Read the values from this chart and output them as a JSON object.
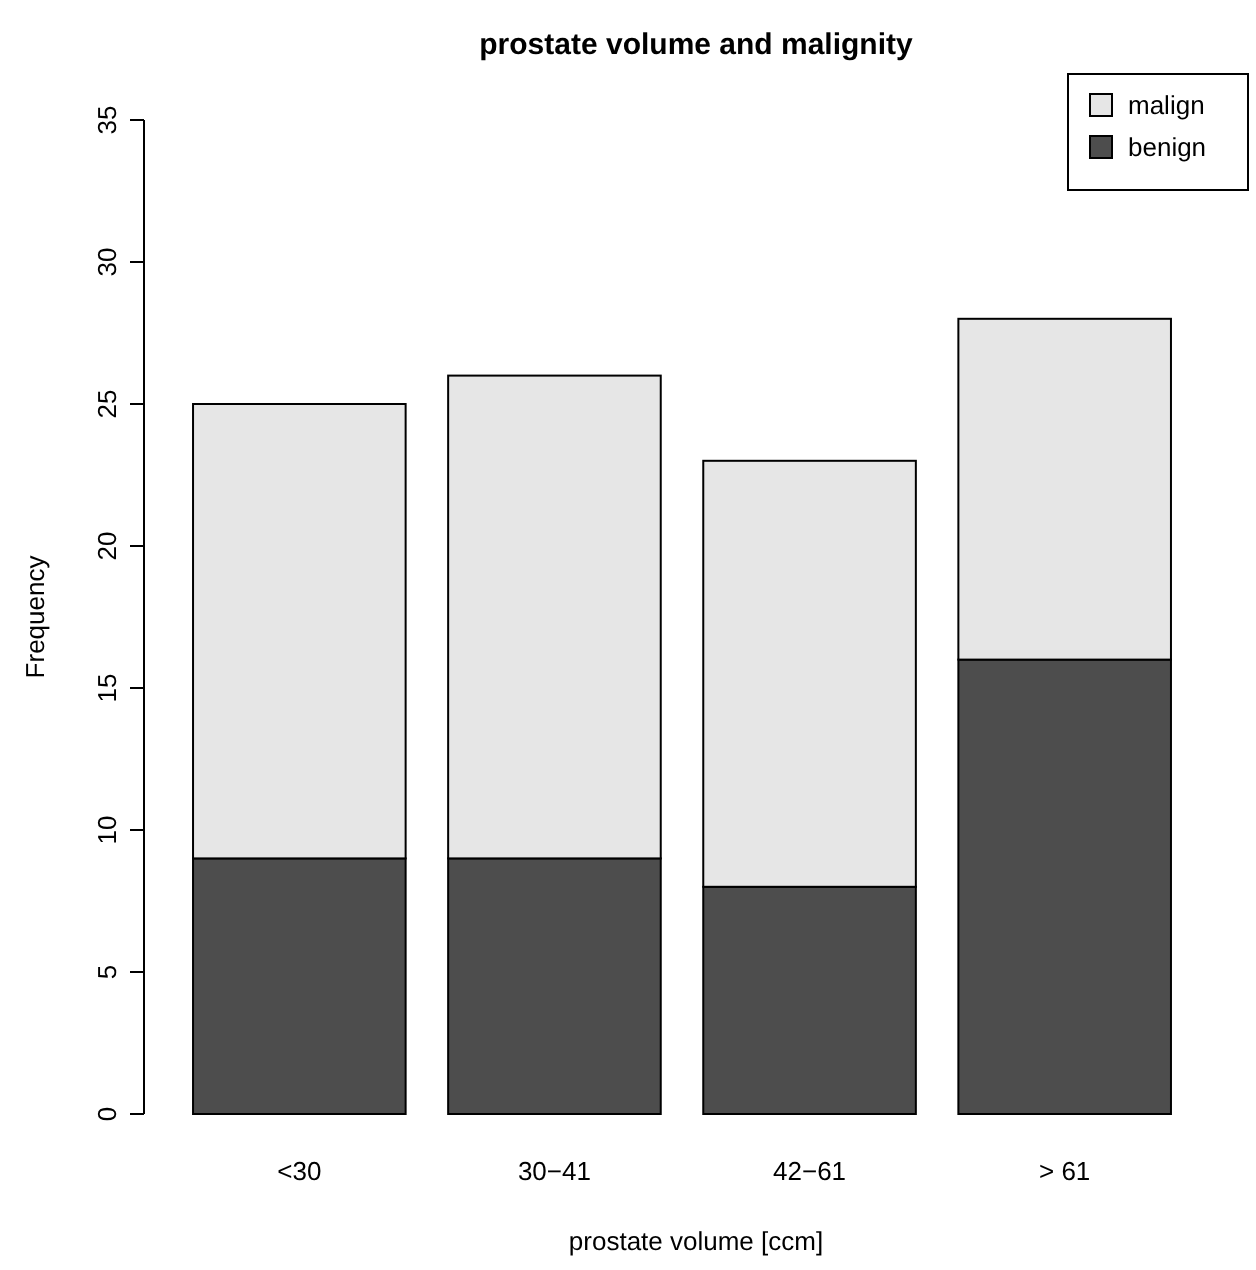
{
  "chart_data": {
    "type": "bar",
    "title": "prostate volume and malignity",
    "xlabel": "prostate volume [ccm]",
    "ylabel": "Frequency",
    "categories": [
      "<30",
      "30−41",
      "42−61",
      "> 61"
    ],
    "series": [
      {
        "name": "benign",
        "color": "#4d4d4d",
        "values": [
          9,
          9,
          8,
          16
        ]
      },
      {
        "name": "malign",
        "color": "#e6e6e6",
        "values": [
          16,
          17,
          15,
          12
        ]
      }
    ],
    "stacked": true,
    "ylim": [
      0,
      35
    ],
    "yticks": [
      0,
      5,
      10,
      15,
      20,
      25,
      30,
      35
    ],
    "grid": false,
    "legend": "top right"
  }
}
